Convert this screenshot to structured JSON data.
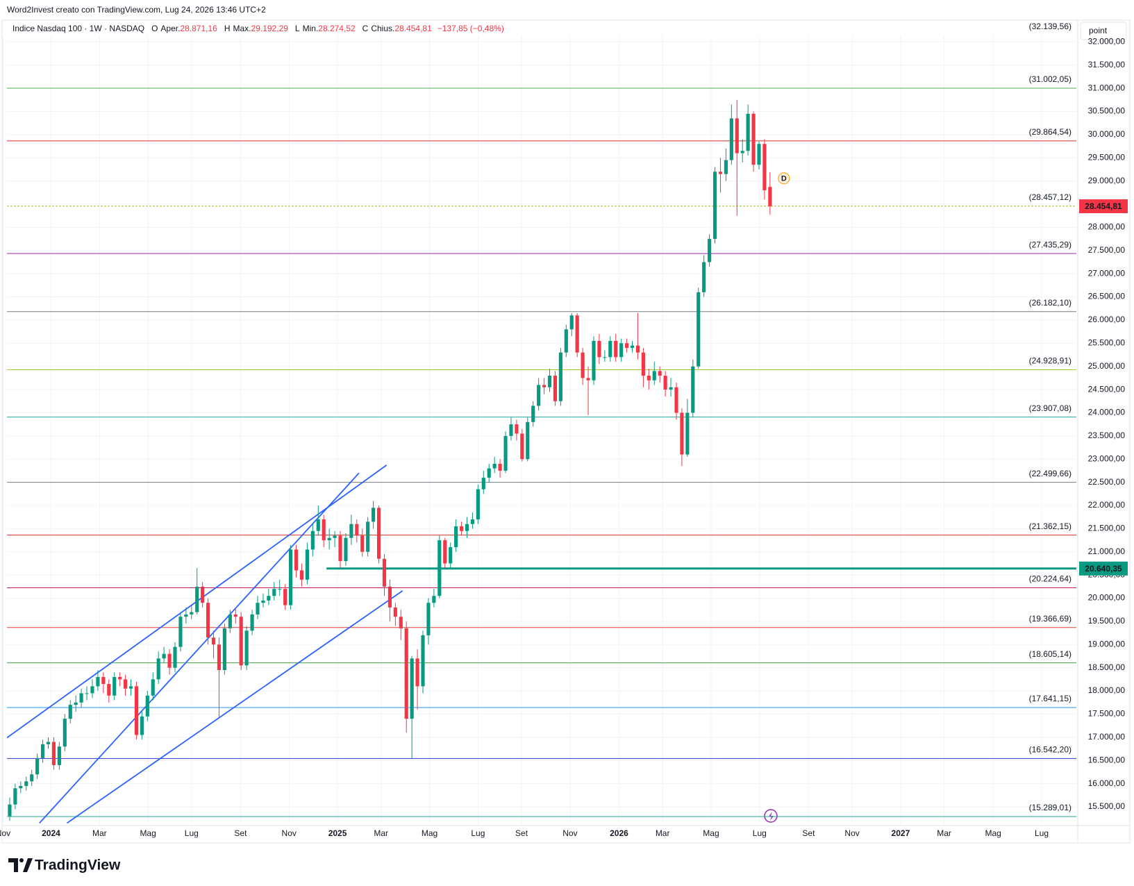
{
  "header": {
    "text": "Word2Invest creato con TradingView.com, Lug 24, 2026 13:46 UTC+2",
    "button": "point",
    "logo": "TradingView"
  },
  "chart_data": {
    "type": "candlestick",
    "legend": {
      "symbol": "Indice Nasdaq 100 · 1W · NASDAQ",
      "open_key": "O",
      "open_name": "Aper.",
      "open_label": "28.871,16",
      "high_key": "H",
      "high_name": "Max.",
      "high_label": "29.192,29",
      "low_key": "L",
      "low_name": "Min.",
      "low_label": "28.274,52",
      "close_key": "C",
      "close_name": "Chius.",
      "close_label": "28.454,81",
      "change_label": "−137,85 (−0,48%)"
    },
    "up_color": "#089981",
    "down_color": "#f23645",
    "grid": true,
    "xlim": [
      -8.5,
      185.6
    ],
    "ylim": [
      15125,
      32125
    ],
    "xticks": [
      {
        "value": -9.2,
        "label": "Nov"
      },
      {
        "value": -0.5,
        "label": "2024"
      },
      {
        "value": 8.3,
        "label": "Mar"
      },
      {
        "value": 17.1,
        "label": "Mag"
      },
      {
        "value": 25,
        "label": "Lug"
      },
      {
        "value": 33.9,
        "label": "Set"
      },
      {
        "value": 42.7,
        "label": "Nov"
      },
      {
        "value": 51.5,
        "label": "2025"
      },
      {
        "value": 59.4,
        "label": "Mar"
      },
      {
        "value": 68.2,
        "label": "Mag"
      },
      {
        "value": 77,
        "label": "Lug"
      },
      {
        "value": 84.9,
        "label": "Set"
      },
      {
        "value": 93.7,
        "label": "Nov"
      },
      {
        "value": 102.6,
        "label": "2026"
      },
      {
        "value": 110.5,
        "label": "Mar"
      },
      {
        "value": 119.3,
        "label": "Mag"
      },
      {
        "value": 128.1,
        "label": "Lug"
      },
      {
        "value": 137,
        "label": "Set"
      },
      {
        "value": 144.9,
        "label": "Nov"
      },
      {
        "value": 153.7,
        "label": "2027"
      },
      {
        "value": 161.6,
        "label": "Mar"
      },
      {
        "value": 170.5,
        "label": "Mag"
      },
      {
        "value": 179.3,
        "label": "Lug"
      }
    ],
    "yticks": [
      {
        "value": 15500,
        "label": "15.500,00"
      },
      {
        "value": 16000,
        "label": "16.000,00"
      },
      {
        "value": 16500,
        "label": "16.500,00"
      },
      {
        "value": 17000,
        "label": "17.000,00"
      },
      {
        "value": 17500,
        "label": "17.500,00"
      },
      {
        "value": 18000,
        "label": "18.000,00"
      },
      {
        "value": 18500,
        "label": "18.500,00"
      },
      {
        "value": 19000,
        "label": "19.000,00"
      },
      {
        "value": 19500,
        "label": "19.500,00"
      },
      {
        "value": 20000,
        "label": "20.000,00"
      },
      {
        "value": 20500,
        "label": "20.500,00"
      },
      {
        "value": 21000,
        "label": "21.000,00"
      },
      {
        "value": 21500,
        "label": "21.500,00"
      },
      {
        "value": 22000,
        "label": "22.000,00"
      },
      {
        "value": 22500,
        "label": "22.500,00"
      },
      {
        "value": 23000,
        "label": "23.000,00"
      },
      {
        "value": 23500,
        "label": "23.500,00"
      },
      {
        "value": 24000,
        "label": "24.000,00"
      },
      {
        "value": 24500,
        "label": "24.500,00"
      },
      {
        "value": 25000,
        "label": "25.000,00"
      },
      {
        "value": 25500,
        "label": "25.500,00"
      },
      {
        "value": 26000,
        "label": "26.000,00"
      },
      {
        "value": 26500,
        "label": "26.500,00"
      },
      {
        "value": 27000,
        "label": "27.000,00"
      },
      {
        "value": 27500,
        "label": "27.500,00"
      },
      {
        "value": 28000,
        "label": "28.000,00"
      },
      {
        "value": 28500,
        "label": "28.500,00"
      },
      {
        "value": 29000,
        "label": "29.000,00"
      },
      {
        "value": 29500,
        "label": "29.500,00"
      },
      {
        "value": 30000,
        "label": "30.000,00"
      },
      {
        "value": 30500,
        "label": "30.500,00"
      },
      {
        "value": 31000,
        "label": "31.000,00"
      },
      {
        "value": 31500,
        "label": "31.500,00"
      },
      {
        "value": 32000,
        "label": "32.000,00"
      }
    ],
    "x": [
      -8,
      -7,
      -6,
      -5,
      -4,
      -3,
      -2,
      -1,
      0,
      1,
      2,
      3,
      4,
      5,
      6,
      7,
      8,
      9,
      10,
      11,
      12,
      13,
      14,
      15,
      16,
      17,
      18,
      19,
      20,
      21,
      22,
      23,
      24,
      25,
      26,
      27,
      28,
      29,
      30,
      31,
      32,
      33,
      34,
      35,
      36,
      37,
      38,
      39,
      40,
      41,
      42,
      43,
      44,
      45,
      46,
      47,
      48,
      49,
      50,
      51,
      52,
      53,
      54,
      55,
      56,
      57,
      58,
      59,
      60,
      61,
      62,
      63,
      64,
      65,
      66,
      67,
      68,
      69,
      70,
      71,
      72,
      73,
      74,
      75,
      76,
      77,
      78,
      79,
      80,
      81,
      82,
      83,
      84,
      85,
      86,
      87,
      88,
      89,
      90,
      91,
      92,
      93,
      94,
      95,
      96,
      97,
      98,
      99,
      100,
      101,
      102,
      103,
      104,
      105,
      106,
      107,
      108,
      109,
      110,
      111,
      112,
      113,
      114,
      115,
      116,
      117,
      118,
      119,
      120,
      121,
      122,
      123,
      124,
      125,
      126,
      127,
      128,
      129,
      130
    ],
    "open": [
      15300,
      15550,
      15900,
      15950,
      16050,
      16200,
      16550,
      16850,
      16900,
      16400,
      16800,
      17400,
      17700,
      17750,
      17950,
      17950,
      18100,
      18300,
      18150,
      17900,
      18300,
      18250,
      18050,
      18100,
      17050,
      17450,
      17900,
      18250,
      18700,
      18800,
      18500,
      18950,
      19600,
      19650,
      19700,
      20250,
      19900,
      19150,
      19000,
      18450,
      19350,
      19650,
      19600,
      18550,
      19300,
      19650,
      19900,
      19950,
      20050,
      20200,
      20200,
      19850,
      21050,
      20600,
      20400,
      21050,
      21450,
      21700,
      21250,
      21300,
      21350,
      20800,
      21300,
      21600,
      21350,
      21000,
      21650,
      21950,
      20850,
      20250,
      19800,
      19600,
      19350,
      17400,
      18700,
      18100,
      19200,
      19900,
      20050,
      21250,
      20750,
      21100,
      21550,
      21450,
      21600,
      21700,
      22350,
      22600,
      22800,
      22900,
      22750,
      23500,
      23750,
      23550,
      23000,
      23800,
      24150,
      24600,
      24550,
      24800,
      24250,
      25300,
      25800,
      26100,
      25300,
      24750,
      24700,
      25550,
      25200,
      25200,
      25550,
      25200,
      25500,
      25400,
      25450,
      25300,
      24800,
      24700,
      24900,
      24800,
      24500,
      24550,
      24000,
      23100,
      24000,
      25000,
      26600,
      27250,
      27750,
      29200,
      29150,
      29450,
      30350,
      29600,
      29650,
      30450,
      29350,
      29800,
      28871.16
    ],
    "high": [
      15700,
      16000,
      16050,
      16150,
      16300,
      16650,
      16950,
      17000,
      17000,
      16900,
      17500,
      17800,
      17900,
      18050,
      18100,
      18250,
      18450,
      18400,
      18250,
      18400,
      18400,
      18350,
      18250,
      18200,
      17550,
      18000,
      18400,
      18850,
      18950,
      18900,
      19050,
      19700,
      19800,
      19850,
      20650,
      20350,
      20000,
      19300,
      19150,
      19450,
      19750,
      19800,
      19700,
      19400,
      19750,
      20050,
      20100,
      20200,
      20350,
      20400,
      20300,
      21150,
      21150,
      20750,
      21200,
      21600,
      22000,
      21800,
      21500,
      21450,
      21450,
      21400,
      21800,
      21700,
      21500,
      21750,
      22100,
      22000,
      20950,
      20400,
      19900,
      19750,
      19500,
      18750,
      18900,
      19300,
      20000,
      20200,
      21350,
      21300,
      21200,
      21700,
      21650,
      21750,
      21850,
      22450,
      22750,
      22900,
      23050,
      23000,
      23600,
      23900,
      23850,
      23650,
      23900,
      24250,
      24750,
      24750,
      24950,
      24900,
      25400,
      25900,
      26150,
      26150,
      25400,
      25000,
      25650,
      25700,
      25350,
      25650,
      25700,
      25600,
      25600,
      25550,
      26150,
      25400,
      24950,
      25100,
      25000,
      24900,
      24750,
      24650,
      24100,
      24300,
      25150,
      26700,
      27400,
      27850,
      29300,
      29500,
      29700,
      30650,
      30750,
      29900,
      30650,
      30500,
      29850,
      29900,
      29192.29
    ],
    "low": [
      15200,
      15450,
      15800,
      15850,
      15950,
      16100,
      16450,
      16750,
      16300,
      16300,
      16700,
      17300,
      17550,
      17650,
      17800,
      17850,
      18000,
      17950,
      17750,
      17800,
      18100,
      17900,
      17900,
      16950,
      16950,
      17350,
      17800,
      18150,
      18600,
      18350,
      18400,
      18850,
      19450,
      19550,
      19650,
      19800,
      19000,
      18700,
      17400,
      18350,
      19250,
      19450,
      18450,
      18450,
      19200,
      19550,
      19800,
      19850,
      19950,
      20050,
      19750,
      19750,
      20450,
      20250,
      20300,
      20900,
      21350,
      21100,
      21050,
      21100,
      20650,
      20700,
      21150,
      21200,
      20900,
      20900,
      21500,
      20750,
      20050,
      19500,
      19400,
      19100,
      17100,
      16550,
      17600,
      17950,
      19000,
      19800,
      20000,
      20650,
      20650,
      21000,
      21350,
      21300,
      21500,
      21600,
      22250,
      22500,
      22700,
      22600,
      22700,
      23400,
      23400,
      22950,
      22950,
      23700,
      24050,
      24400,
      24450,
      24150,
      24150,
      25200,
      25650,
      25200,
      24600,
      23950,
      24600,
      25050,
      25100,
      25100,
      25100,
      25100,
      25300,
      25300,
      25150,
      24550,
      24500,
      24600,
      24650,
      24350,
      24350,
      23850,
      22850,
      23050,
      23900,
      24950,
      26500,
      27150,
      27650,
      28750,
      29000,
      29350,
      28250,
      29400,
      29550,
      29200,
      29250,
      28600,
      28274.52
    ],
    "close": [
      15550,
      15900,
      15950,
      16050,
      16200,
      16550,
      16850,
      16900,
      16400,
      16800,
      17400,
      17700,
      17750,
      17950,
      17950,
      18100,
      18300,
      18150,
      17900,
      18300,
      18250,
      18050,
      18100,
      17050,
      17450,
      17900,
      18250,
      18700,
      18800,
      18500,
      18950,
      19600,
      19650,
      19700,
      20250,
      19900,
      19150,
      19000,
      18450,
      19350,
      19650,
      19600,
      18550,
      19300,
      19650,
      19900,
      19950,
      20050,
      20200,
      20200,
      19850,
      21050,
      20600,
      20400,
      21050,
      21450,
      21700,
      21250,
      21300,
      21350,
      20800,
      21300,
      21600,
      21350,
      21000,
      21650,
      21950,
      20850,
      20250,
      19800,
      19600,
      19350,
      17400,
      18700,
      18100,
      19200,
      19900,
      20050,
      21250,
      20750,
      21100,
      21550,
      21450,
      21600,
      21700,
      22350,
      22600,
      22800,
      22900,
      22750,
      23500,
      23750,
      23550,
      23000,
      23800,
      24150,
      24600,
      24550,
      24800,
      24250,
      25300,
      25800,
      26100,
      25300,
      24750,
      24700,
      25550,
      25200,
      25200,
      25550,
      25200,
      25500,
      25400,
      25450,
      25300,
      24800,
      24700,
      24900,
      24800,
      24500,
      24550,
      24000,
      23100,
      24000,
      25000,
      26600,
      27250,
      27750,
      29200,
      29150,
      29450,
      30350,
      29600,
      29650,
      30450,
      29350,
      29800,
      28800,
      28454.81
    ],
    "price_label": "28.454,81",
    "levels": [
      {
        "value": 32139.56,
        "label": "(32.139,56)",
        "color": "#2196b3"
      },
      {
        "value": 31002.05,
        "label": "(31.002,05)",
        "color": "#4caf50"
      },
      {
        "value": 29864.54,
        "label": "(29.864,54)",
        "color": "#d32f2f"
      },
      {
        "value": 28457.12,
        "label": "(28.457,12)",
        "color": "#a5b81e",
        "dashed": true
      },
      {
        "value": 27435.29,
        "label": "(27.435,29)",
        "color": "#9c27b0"
      },
      {
        "value": 26182.1,
        "label": "(26.182,10)",
        "color": "#787b86"
      },
      {
        "value": 24928.91,
        "label": "(24.928,91)",
        "color": "#9ccc2a"
      },
      {
        "value": 23907.08,
        "label": "(23.907,08)",
        "color": "#26a69a"
      },
      {
        "value": 22499.66,
        "label": "(22.499,66)",
        "color": "#787b86"
      },
      {
        "value": 21362.15,
        "label": "(21.362,15)",
        "color": "#d32f2f"
      },
      {
        "value": 20224.64,
        "label": "(20.224,64)",
        "color": "#c2185b"
      },
      {
        "value": 19366.69,
        "label": "(19.366,69)",
        "color": "#e53935"
      },
      {
        "value": 18605.14,
        "label": "(18.605,14)",
        "color": "#43a047"
      },
      {
        "value": 17641.15,
        "label": "(17.641,15)",
        "color": "#2196f3"
      },
      {
        "value": 16542.2,
        "label": "(16.542,20)",
        "color": "#3333cc"
      },
      {
        "value": 15289.01,
        "label": "(15.289,01)",
        "color": "#26a69a"
      }
    ],
    "support": {
      "value": 20640.35,
      "label": "20.640,35",
      "x_start": 49.5,
      "color": "#089981"
    },
    "trendlines": [
      {
        "x": [
          -8.5,
          60.4
        ],
        "y": [
          16990,
          22870
        ],
        "color": "#2962ff"
      },
      {
        "x": [
          -2.6,
          55.4
        ],
        "y": [
          15150,
          22700
        ],
        "color": "#2962ff"
      },
      {
        "x": [
          2.4,
          63.3
        ],
        "y": [
          15150,
          20160
        ],
        "color": "#2962ff"
      }
    ],
    "marker": {
      "label": "D",
      "color": "#ff9800"
    }
  }
}
